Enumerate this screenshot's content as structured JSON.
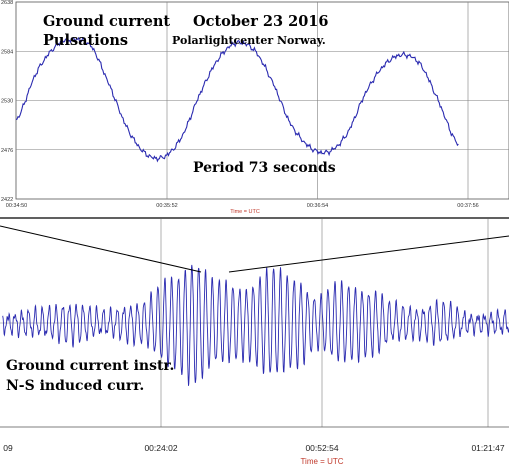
{
  "colors": {
    "trace": "#2b2bb0",
    "grid": "#7f7f7f",
    "axis_title": "#c0392b"
  },
  "chart_data": [
    {
      "type": "line",
      "title": "Ground current Pulsations",
      "annotations": {
        "title_line1": "Ground current",
        "title_line2": "Pulsations",
        "date": "October 23 2016",
        "station": "Polarlightcenter Norway.",
        "period": "Period 73 seconds"
      },
      "xlabel": "Time = UTC",
      "x_ticks": [
        "00:34:50",
        "00:35:52",
        "00:36:54",
        "00:37:56"
      ],
      "y_ticks": [
        "2638",
        "2584",
        "2530",
        "2476",
        "2422"
      ],
      "ylim": [
        2422,
        2638
      ],
      "grid": true,
      "series": [
        {
          "x": [
            0,
            10,
            20,
            28,
            37,
            46,
            55,
            64,
            73,
            82,
            91,
            100,
            109,
            118,
            127,
            136,
            146,
            155,
            164,
            173,
            182,
            191,
            200,
            209,
            218,
            219
          ],
          "x_unit": "seconds after 00:34:50",
          "values": [
            2508,
            2560,
            2590,
            2597,
            2590,
            2548,
            2500,
            2472,
            2468,
            2490,
            2537,
            2575,
            2593,
            2585,
            2550,
            2504,
            2478,
            2474,
            2494,
            2538,
            2568,
            2580,
            2570,
            2530,
            2485,
            2482
          ]
        }
      ]
    },
    {
      "type": "line",
      "annotations": {
        "label_line1": "Ground current instr.",
        "label_line2": "N-S induced curr."
      },
      "xlabel": "Time = UTC",
      "x_ticks": [
        "09",
        "00:24:02",
        "00:52:54",
        "01:21:47"
      ],
      "grid": true,
      "envelope": {
        "x_minutes": [
          -5,
          2,
          8,
          14,
          20,
          26,
          30,
          34,
          39,
          44,
          48,
          52,
          56,
          62,
          66,
          70,
          74,
          80,
          86,
          90
        ],
        "amplitude": [
          0.12,
          0.2,
          0.3,
          0.18,
          0.3,
          0.7,
          0.95,
          0.65,
          0.55,
          0.85,
          0.7,
          0.4,
          0.62,
          0.5,
          0.28,
          0.22,
          0.32,
          0.12,
          0.16,
          0.1
        ]
      }
    }
  ]
}
